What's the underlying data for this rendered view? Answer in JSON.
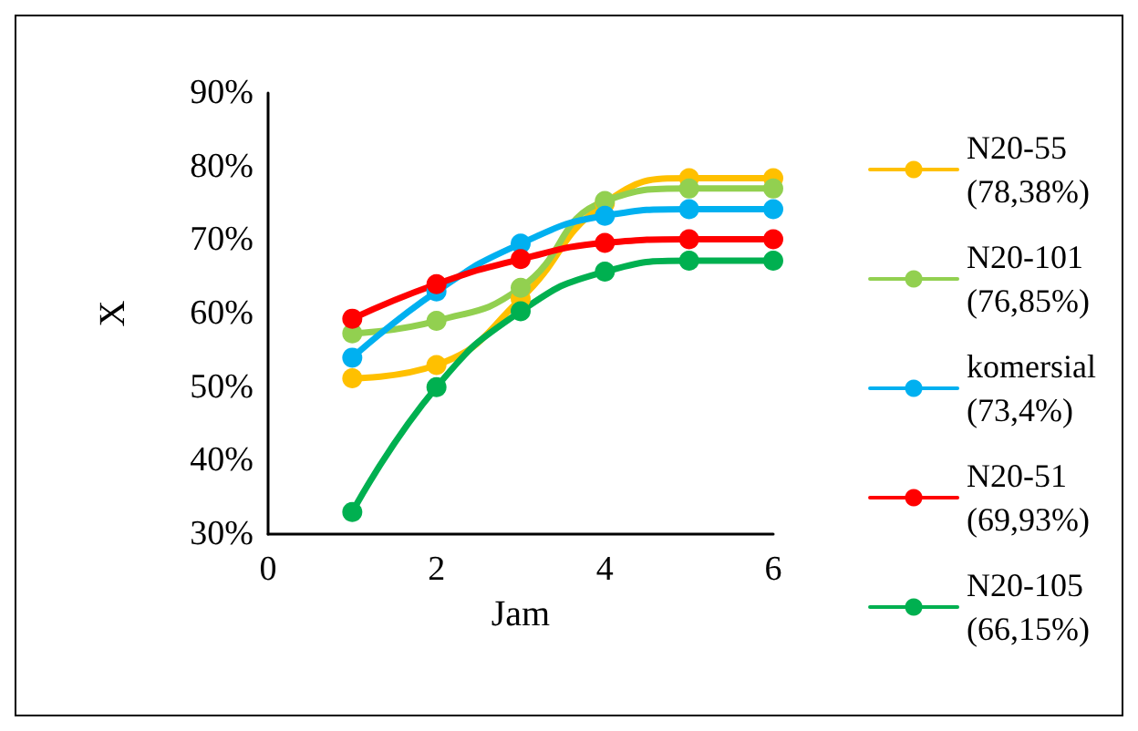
{
  "chart_data": {
    "type": "line",
    "xlabel": "Jam",
    "ylabel": "X",
    "x": [
      1,
      2,
      3,
      4,
      5,
      6
    ],
    "series": [
      {
        "name": "N20-55\n(78,38%)",
        "color": "#ffc000",
        "values": [
          51.2,
          53,
          62,
          75,
          78.4,
          78.4
        ]
      },
      {
        "name": "N20-101\n(76,85%)",
        "color": "#92d050",
        "values": [
          57.3,
          59,
          63.5,
          75.3,
          77,
          77
        ]
      },
      {
        "name": "komersial\n(73,4%)",
        "color": "#00b0f0",
        "values": [
          54,
          63,
          69.5,
          73.3,
          74.2,
          74.2
        ]
      },
      {
        "name": "N20-51\n(69,93%)",
        "color": "#ff0000",
        "values": [
          59.3,
          64,
          67.4,
          69.6,
          70.1,
          70.1
        ]
      },
      {
        "name": "N20-105\n(66,15%)",
        "color": "#00b050",
        "values": [
          33,
          50,
          60.3,
          65.7,
          67.2,
          67.2
        ]
      }
    ],
    "xlim": [
      0,
      6
    ],
    "xticks": [
      0,
      2,
      4,
      6
    ],
    "ylim": [
      30,
      90
    ],
    "yticks": [
      {
        "value": 30,
        "label": "30%"
      },
      {
        "value": 40,
        "label": "40%"
      },
      {
        "value": 50,
        "label": "50%"
      },
      {
        "value": 60,
        "label": "60%"
      },
      {
        "value": 70,
        "label": "70%"
      },
      {
        "value": 80,
        "label": "80%"
      },
      {
        "value": 90,
        "label": "90%"
      }
    ],
    "grid": false,
    "legend": "right",
    "marker": "circle",
    "line_style": "solid"
  }
}
